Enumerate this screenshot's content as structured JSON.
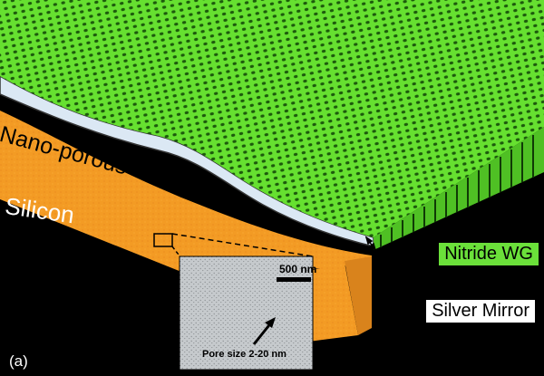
{
  "labels": {
    "nitride": "Nitride WG",
    "oxide": "Nano-porous Oxide",
    "silicon": "Silicon",
    "silver": "Silver Mirror",
    "panel": "(a)"
  },
  "inset": {
    "scale_bar_label": "500 nm",
    "pore_label": "Pore size 2-20 nm"
  },
  "colors": {
    "nitride": "#5fe02c",
    "nitride_dark": "#1f6e10",
    "oxide": "#f39b24",
    "cladding": "#dde9f5",
    "background": "#000000",
    "inset_bg": "#c9cdd0"
  }
}
